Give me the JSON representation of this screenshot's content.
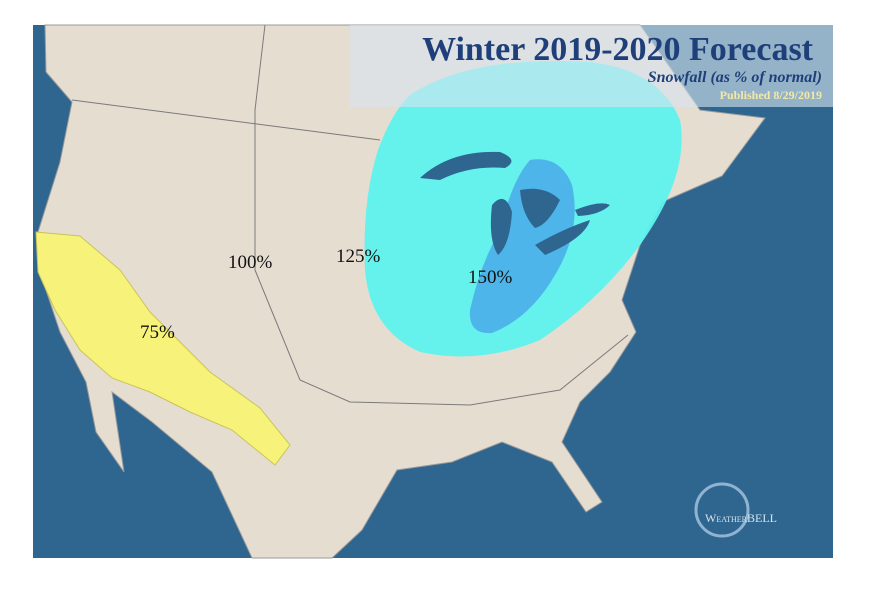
{
  "header": {
    "title": "Winter 2019-2020 Forecast",
    "subtitle": "Snowfall (as % of normal)",
    "published": "Published 8/29/2019"
  },
  "regions": [
    {
      "label": "100%"
    },
    {
      "label": "125%"
    },
    {
      "label": "150%"
    },
    {
      "label": "75%"
    }
  ],
  "logo": {
    "name": "WeatherBELL"
  }
}
